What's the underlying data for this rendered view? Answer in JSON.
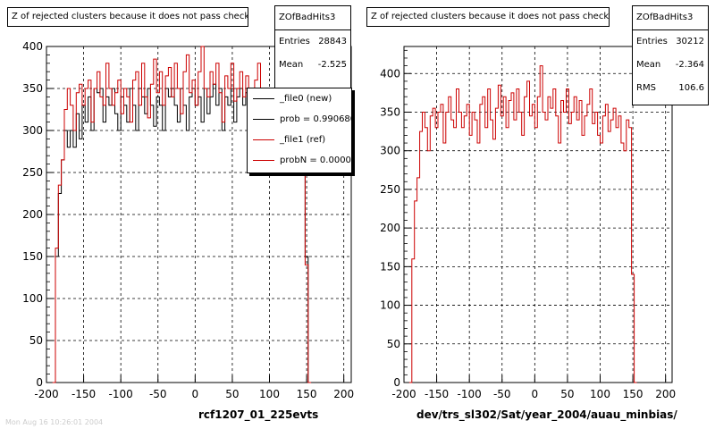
{
  "chart_data": [
    {
      "type": "histogram",
      "title": "Z of rejected clusters  because it does not pass check",
      "xlabel": "rcf1207_01_225evts",
      "ylabel": "",
      "xlim": [
        -200,
        210
      ],
      "ylim": [
        0,
        400
      ],
      "xticks": [
        -200,
        -150,
        -100,
        -50,
        0,
        50,
        100,
        150,
        200
      ],
      "yticks": [
        0,
        50,
        100,
        150,
        200,
        250,
        300,
        350,
        400
      ],
      "grid": true,
      "bin_width": 4,
      "stats": {
        "name": "ZOfBadHits3",
        "entries_label": "Entries",
        "entries": "28843",
        "mean_label": "Mean",
        "mean": "-2.525"
      },
      "legend": {
        "placement": "top-right",
        "entries": [
          {
            "label": "_file0 (new)",
            "color": "#000000"
          },
          {
            "label": "prob = 0.990680",
            "color": "#000000"
          },
          {
            "label": "_file1 (ref)",
            "color": "#cc0000"
          },
          {
            "label": "probN = 0.000000",
            "color": "#cc0000"
          }
        ]
      },
      "series": [
        {
          "name": "_file0 (new)",
          "color": "#000000",
          "x_start": -192,
          "values": [
            0,
            150,
            225,
            265,
            300,
            280,
            300,
            280,
            320,
            290,
            330,
            310,
            340,
            300,
            350,
            345,
            350,
            310,
            340,
            330,
            350,
            320,
            300,
            340,
            330,
            310,
            350,
            330,
            300,
            350,
            340,
            320,
            350,
            330,
            305,
            340,
            330,
            300,
            350,
            340,
            350,
            330,
            310,
            350,
            330,
            300,
            340,
            350,
            330,
            340,
            310,
            350,
            320,
            340,
            355,
            330,
            350,
            300,
            340,
            330,
            350,
            310,
            340,
            350,
            330,
            345,
            320,
            310,
            340,
            350,
            330,
            340,
            310,
            300,
            330,
            340,
            320,
            310,
            330,
            320,
            330,
            310,
            300,
            330,
            320,
            150,
            0
          ]
        },
        {
          "name": "_file1 (ref)",
          "color": "#cc0000",
          "x_start": -192,
          "values": [
            0,
            160,
            235,
            265,
            325,
            350,
            330,
            300,
            345,
            355,
            330,
            350,
            360,
            310,
            350,
            370,
            340,
            330,
            380,
            350,
            330,
            345,
            360,
            320,
            350,
            340,
            310,
            360,
            370,
            330,
            380,
            340,
            315,
            355,
            385,
            345,
            370,
            330,
            365,
            375,
            340,
            380,
            350,
            320,
            370,
            390,
            345,
            360,
            330,
            370,
            400,
            350,
            340,
            370,
            355,
            380,
            345,
            310,
            365,
            350,
            380,
            335,
            350,
            370,
            340,
            365,
            320,
            345,
            360,
            380,
            335,
            350,
            320,
            310,
            345,
            360,
            325,
            340,
            355,
            330,
            345,
            310,
            300,
            340,
            330,
            140,
            0
          ]
        }
      ]
    },
    {
      "type": "histogram",
      "title": "Z of rejected clusters  because it does not pass check",
      "xlabel": "dev/trs_sl302/Sat/year_2004/auau_minbias/",
      "ylabel": "",
      "xlim": [
        -200,
        210
      ],
      "ylim": [
        0,
        435
      ],
      "xticks": [
        -200,
        -150,
        -100,
        -50,
        0,
        50,
        100,
        150,
        200
      ],
      "yticks": [
        0,
        50,
        100,
        150,
        200,
        250,
        300,
        350,
        400
      ],
      "grid": true,
      "bin_width": 4,
      "stats": {
        "name": "ZOfBadHits3",
        "entries_label": "Entries",
        "entries": "30212",
        "mean_label": "Mean",
        "mean": "-2.364",
        "rms_label": "RMS",
        "rms": "106.6"
      },
      "series": [
        {
          "name": "",
          "color": "#cc0000",
          "x_start": -192,
          "values": [
            0,
            160,
            235,
            265,
            325,
            350,
            330,
            300,
            345,
            355,
            330,
            350,
            360,
            310,
            350,
            370,
            340,
            330,
            380,
            350,
            330,
            345,
            360,
            320,
            350,
            340,
            310,
            360,
            370,
            330,
            380,
            340,
            315,
            355,
            385,
            345,
            370,
            330,
            365,
            375,
            340,
            380,
            350,
            320,
            370,
            390,
            345,
            360,
            330,
            370,
            410,
            350,
            340,
            370,
            355,
            380,
            345,
            310,
            365,
            350,
            380,
            335,
            350,
            370,
            340,
            365,
            320,
            345,
            360,
            380,
            335,
            350,
            320,
            310,
            345,
            360,
            325,
            340,
            355,
            330,
            345,
            310,
            300,
            340,
            330,
            140,
            0
          ]
        }
      ]
    }
  ],
  "footer_text": "Mon Aug 16 10:26:01 2004"
}
